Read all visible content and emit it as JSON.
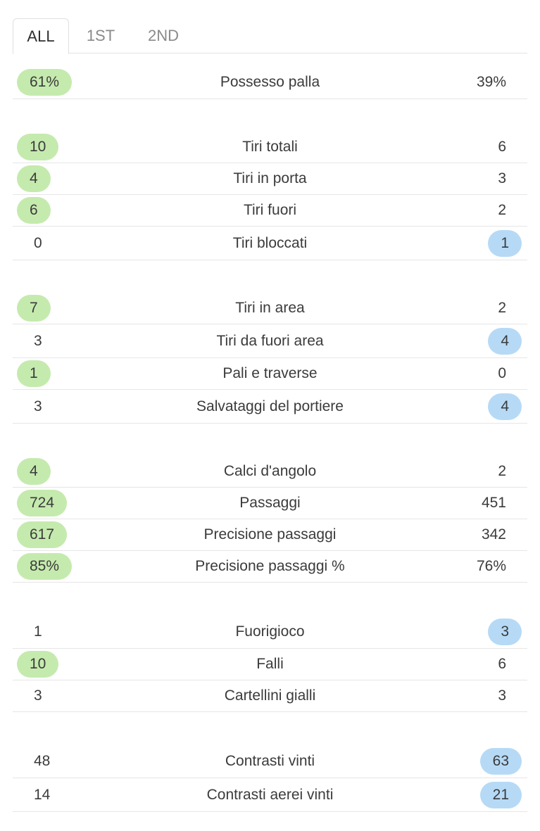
{
  "tabs": {
    "all": "ALL",
    "first": "1ST",
    "second": "2ND"
  },
  "colors": {
    "home_highlight": "#c5eaae",
    "away_highlight": "#b6daf6"
  },
  "groups": [
    {
      "rows": [
        {
          "label": "Possesso palla",
          "home": "61%",
          "away": "39%",
          "winner": "home"
        }
      ]
    },
    {
      "rows": [
        {
          "label": "Tiri totali",
          "home": "10",
          "away": "6",
          "winner": "home"
        },
        {
          "label": "Tiri in porta",
          "home": "4",
          "away": "3",
          "winner": "home"
        },
        {
          "label": "Tiri fuori",
          "home": "6",
          "away": "2",
          "winner": "home"
        },
        {
          "label": "Tiri bloccati",
          "home": "0",
          "away": "1",
          "winner": "away"
        }
      ]
    },
    {
      "rows": [
        {
          "label": "Tiri in area",
          "home": "7",
          "away": "2",
          "winner": "home"
        },
        {
          "label": "Tiri da fuori area",
          "home": "3",
          "away": "4",
          "winner": "away"
        },
        {
          "label": "Pali e traverse",
          "home": "1",
          "away": "0",
          "winner": "home"
        },
        {
          "label": "Salvataggi del portiere",
          "home": "3",
          "away": "4",
          "winner": "away"
        }
      ]
    },
    {
      "rows": [
        {
          "label": "Calci d'angolo",
          "home": "4",
          "away": "2",
          "winner": "home"
        },
        {
          "label": "Passaggi",
          "home": "724",
          "away": "451",
          "winner": "home"
        },
        {
          "label": "Precisione passaggi",
          "home": "617",
          "away": "342",
          "winner": "home"
        },
        {
          "label": "Precisione passaggi %",
          "home": "85%",
          "away": "76%",
          "winner": "home"
        }
      ]
    },
    {
      "rows": [
        {
          "label": "Fuorigioco",
          "home": "1",
          "away": "3",
          "winner": "away"
        },
        {
          "label": "Falli",
          "home": "10",
          "away": "6",
          "winner": "home"
        },
        {
          "label": "Cartellini gialli",
          "home": "3",
          "away": "3",
          "winner": "none"
        }
      ]
    },
    {
      "rows": [
        {
          "label": "Contrasti vinti",
          "home": "48",
          "away": "63",
          "winner": "away"
        },
        {
          "label": "Contrasti aerei vinti",
          "home": "14",
          "away": "21",
          "winner": "away"
        }
      ]
    }
  ]
}
